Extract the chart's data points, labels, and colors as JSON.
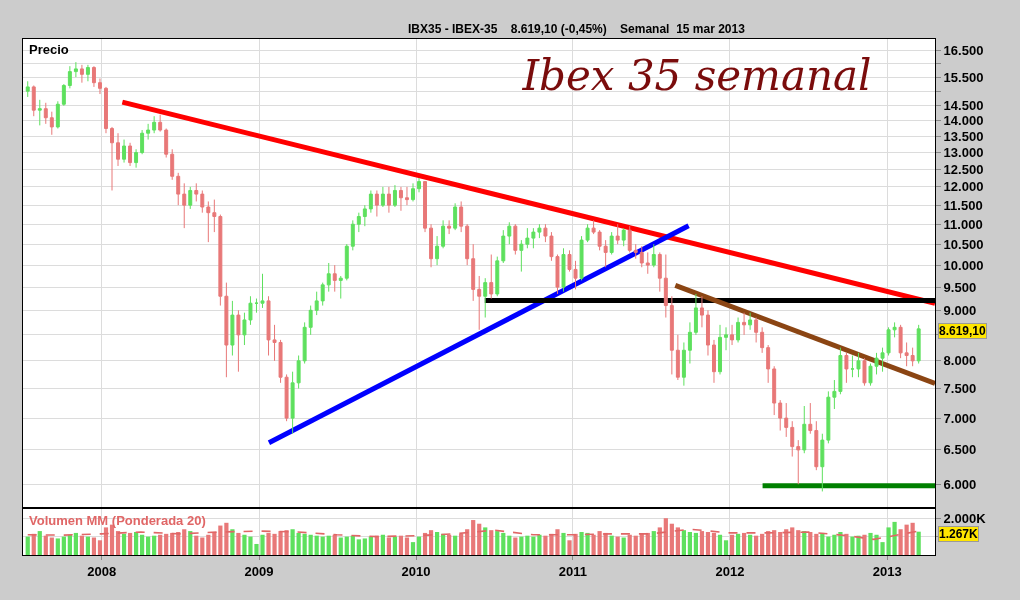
{
  "chart_data": [
    {
      "type": "candlestick",
      "title": "Ibex 35 semanal",
      "subtitle": "IBX35 - IBEX-35    8.619,10 (-0,45%)    Semanal  15 mar 2013",
      "ylabel": "Precio",
      "x": [
        "2007-07-13",
        "2007-07-27",
        "2007-08-10",
        "2007-08-24",
        "2007-09-07",
        "2007-09-21",
        "2007-10-05",
        "2007-10-19",
        "2007-11-02",
        "2007-11-16",
        "2007-11-30",
        "2007-12-14",
        "2007-12-28",
        "2008-01-11",
        "2008-01-25",
        "2008-02-08",
        "2008-02-22",
        "2008-03-07",
        "2008-03-21",
        "2008-04-04",
        "2008-04-18",
        "2008-05-02",
        "2008-05-16",
        "2008-05-30",
        "2008-06-13",
        "2008-06-27",
        "2008-07-11",
        "2008-07-25",
        "2008-08-08",
        "2008-08-22",
        "2008-09-05",
        "2008-09-19",
        "2008-10-03",
        "2008-10-17",
        "2008-10-31",
        "2008-11-14",
        "2008-11-28",
        "2008-12-12",
        "2008-12-26",
        "2009-01-09",
        "2009-01-23",
        "2009-02-06",
        "2009-02-20",
        "2009-03-06",
        "2009-03-20",
        "2009-04-03",
        "2009-04-17",
        "2009-05-01",
        "2009-05-15",
        "2009-05-29",
        "2009-06-12",
        "2009-06-26",
        "2009-07-10",
        "2009-07-24",
        "2009-08-07",
        "2009-08-21",
        "2009-09-04",
        "2009-09-18",
        "2009-10-02",
        "2009-10-16",
        "2009-10-30",
        "2009-11-13",
        "2009-11-27",
        "2009-12-11",
        "2009-12-25",
        "2010-01-08",
        "2010-01-22",
        "2010-02-05",
        "2010-02-19",
        "2010-03-05",
        "2010-03-19",
        "2010-04-02",
        "2010-04-16",
        "2010-04-30",
        "2010-05-14",
        "2010-05-28",
        "2010-06-11",
        "2010-06-25",
        "2010-07-09",
        "2010-07-23",
        "2010-08-06",
        "2010-08-20",
        "2010-09-03",
        "2010-09-17",
        "2010-10-01",
        "2010-10-15",
        "2010-10-29",
        "2010-11-12",
        "2010-11-26",
        "2010-12-10",
        "2010-12-24",
        "2011-01-07",
        "2011-01-21",
        "2011-02-04",
        "2011-02-18",
        "2011-03-04",
        "2011-03-18",
        "2011-04-01",
        "2011-04-15",
        "2011-04-29",
        "2011-05-13",
        "2011-05-27",
        "2011-06-10",
        "2011-06-24",
        "2011-07-08",
        "2011-07-22",
        "2011-08-05",
        "2011-08-19",
        "2011-09-02",
        "2011-09-16",
        "2011-09-30",
        "2011-10-14",
        "2011-10-28",
        "2011-11-11",
        "2011-11-25",
        "2011-12-09",
        "2011-12-23",
        "2012-01-06",
        "2012-01-20",
        "2012-02-03",
        "2012-02-17",
        "2012-03-02",
        "2012-03-16",
        "2012-03-30",
        "2012-04-13",
        "2012-04-27",
        "2012-05-11",
        "2012-05-25",
        "2012-06-08",
        "2012-06-22",
        "2012-07-06",
        "2012-07-20",
        "2012-08-03",
        "2012-08-17",
        "2012-08-31",
        "2012-09-14",
        "2012-09-28",
        "2012-10-12",
        "2012-10-26",
        "2012-11-09",
        "2012-11-23",
        "2012-12-07",
        "2012-12-21",
        "2013-01-04",
        "2013-01-18",
        "2013-02-01",
        "2013-02-15",
        "2013-03-01",
        "2013-03-15"
      ],
      "ohlc": [
        [
          15000,
          15350,
          14800,
          15150
        ],
        [
          15150,
          15200,
          14150,
          14350
        ],
        [
          14350,
          14700,
          13850,
          14400
        ],
        [
          14400,
          14600,
          13900,
          14100
        ],
        [
          14100,
          14300,
          13550,
          13800
        ],
        [
          13800,
          14650,
          13750,
          14550
        ],
        [
          14550,
          15250,
          14500,
          15200
        ],
        [
          15200,
          15900,
          15100,
          15700
        ],
        [
          15700,
          16050,
          15500,
          15800
        ],
        [
          15800,
          15950,
          15300,
          15600
        ],
        [
          15600,
          15950,
          15350,
          15850
        ],
        [
          15850,
          15900,
          15150,
          15300
        ],
        [
          15300,
          15450,
          14900,
          15100
        ],
        [
          15100,
          15150,
          13600,
          13750
        ],
        [
          13750,
          13800,
          11900,
          13300
        ],
        [
          13300,
          13600,
          12600,
          12800
        ],
        [
          12800,
          13400,
          12700,
          13200
        ],
        [
          13200,
          13300,
          12600,
          12700
        ],
        [
          12700,
          13100,
          12550,
          13000
        ],
        [
          13000,
          13700,
          12950,
          13600
        ],
        [
          13600,
          13900,
          13400,
          13700
        ],
        [
          13700,
          14150,
          13600,
          13950
        ],
        [
          13950,
          14200,
          13650,
          13700
        ],
        [
          13700,
          13750,
          12850,
          12950
        ],
        [
          12950,
          13100,
          12200,
          12300
        ],
        [
          12300,
          12400,
          11500,
          11800
        ],
        [
          11800,
          12100,
          10900,
          11500
        ],
        [
          11500,
          12000,
          11400,
          11900
        ],
        [
          11900,
          12100,
          11600,
          11800
        ],
        [
          11800,
          11900,
          11300,
          11450
        ],
        [
          11450,
          11600,
          10550,
          11300
        ],
        [
          11300,
          11650,
          10800,
          11200
        ],
        [
          11200,
          11250,
          9100,
          9300
        ],
        [
          9300,
          9600,
          7700,
          8300
        ],
        [
          8300,
          9200,
          8100,
          8900
        ],
        [
          8900,
          9000,
          7800,
          8500
        ],
        [
          8500,
          8950,
          8300,
          8800
        ],
        [
          8800,
          9300,
          8700,
          9150
        ],
        [
          9150,
          9250,
          8950,
          9150
        ],
        [
          9150,
          9800,
          9050,
          9200
        ],
        [
          9200,
          9300,
          8100,
          8400
        ],
        [
          8400,
          8700,
          8000,
          8350
        ],
        [
          8350,
          8400,
          7600,
          7700
        ],
        [
          7700,
          7750,
          6950,
          7000
        ],
        [
          7000,
          7800,
          6750,
          7600
        ],
        [
          7600,
          8100,
          7500,
          8000
        ],
        [
          8000,
          8750,
          7950,
          8650
        ],
        [
          8650,
          9100,
          8500,
          9000
        ],
        [
          9000,
          9400,
          8900,
          9200
        ],
        [
          9200,
          9600,
          9100,
          9550
        ],
        [
          9550,
          10050,
          9400,
          9800
        ],
        [
          9800,
          10000,
          9400,
          9650
        ],
        [
          9650,
          9750,
          9250,
          9700
        ],
        [
          9700,
          10500,
          9650,
          10450
        ],
        [
          10450,
          11100,
          10350,
          11000
        ],
        [
          11000,
          11300,
          10800,
          11200
        ],
        [
          11200,
          11500,
          10950,
          11400
        ],
        [
          11400,
          11900,
          11300,
          11800
        ],
        [
          11800,
          11900,
          11200,
          11500
        ],
        [
          11500,
          12000,
          11450,
          11800
        ],
        [
          11800,
          12000,
          11300,
          11500
        ],
        [
          11500,
          12050,
          11450,
          11900
        ],
        [
          11900,
          12000,
          11350,
          11700
        ],
        [
          11700,
          12000,
          11500,
          11650
        ],
        [
          11650,
          12100,
          11600,
          11950
        ],
        [
          11950,
          12250,
          11850,
          12150
        ],
        [
          12150,
          12150,
          10800,
          10900
        ],
        [
          10900,
          11000,
          9950,
          10150
        ],
        [
          10150,
          10700,
          10000,
          10450
        ],
        [
          10450,
          11100,
          10400,
          10950
        ],
        [
          10950,
          11100,
          10750,
          10900
        ],
        [
          10900,
          11550,
          10850,
          11450
        ],
        [
          11450,
          11600,
          10800,
          10950
        ],
        [
          10950,
          11000,
          10000,
          10150
        ],
        [
          10150,
          10500,
          9200,
          9450
        ],
        [
          9450,
          9750,
          8600,
          9300
        ],
        [
          9300,
          9700,
          8850,
          9600
        ],
        [
          9600,
          10250,
          9250,
          9350
        ],
        [
          9350,
          10200,
          9300,
          10100
        ],
        [
          10100,
          10850,
          10050,
          10700
        ],
        [
          10700,
          11050,
          10500,
          10950
        ],
        [
          10950,
          11000,
          10250,
          10350
        ],
        [
          10350,
          10600,
          9850,
          10500
        ],
        [
          10500,
          10900,
          10400,
          10650
        ],
        [
          10650,
          10900,
          10400,
          10800
        ],
        [
          10800,
          11000,
          10650,
          10900
        ],
        [
          10900,
          11000,
          10550,
          10700
        ],
        [
          10700,
          10800,
          10100,
          10200
        ],
        [
          10200,
          10250,
          9350,
          9500
        ],
        [
          9500,
          10400,
          9400,
          10250
        ],
        [
          10250,
          10350,
          9850,
          9900
        ],
        [
          9900,
          10100,
          9450,
          9700
        ],
        [
          9700,
          10700,
          9650,
          10600
        ],
        [
          10600,
          11000,
          10550,
          10900
        ],
        [
          10900,
          11100,
          10750,
          10800
        ],
        [
          10800,
          10850,
          10350,
          10450
        ],
        [
          10450,
          10600,
          9950,
          10300
        ],
        [
          10300,
          10800,
          10250,
          10700
        ],
        [
          10700,
          11000,
          10500,
          10600
        ],
        [
          10600,
          10900,
          10450,
          10850
        ],
        [
          10850,
          10950,
          10300,
          10350
        ],
        [
          10350,
          10500,
          10150,
          10300
        ],
        [
          10300,
          10450,
          9950,
          10050
        ],
        [
          10050,
          10300,
          9800,
          10000
        ],
        [
          10000,
          10500,
          9950,
          10250
        ],
        [
          10250,
          10300,
          9400,
          9700
        ],
        [
          9700,
          10250,
          8850,
          9100
        ],
        [
          9100,
          9300,
          7750,
          8200
        ],
        [
          8200,
          8500,
          7650,
          7700
        ],
        [
          7700,
          8350,
          7550,
          8200
        ],
        [
          8200,
          8750,
          7950,
          8550
        ],
        [
          8550,
          9350,
          8500,
          9050
        ],
        [
          9050,
          9300,
          8650,
          8900
        ],
        [
          8900,
          9000,
          8100,
          8300
        ],
        [
          8300,
          8400,
          7600,
          7800
        ],
        [
          7800,
          8700,
          7750,
          8450
        ],
        [
          8450,
          8650,
          8200,
          8500
        ],
        [
          8500,
          8700,
          8300,
          8400
        ],
        [
          8400,
          8850,
          8350,
          8750
        ],
        [
          8750,
          8950,
          8500,
          8700
        ],
        [
          8700,
          8950,
          8600,
          8800
        ],
        [
          8800,
          8850,
          8350,
          8550
        ],
        [
          8550,
          8650,
          8150,
          8250
        ],
        [
          8250,
          8300,
          7600,
          7850
        ],
        [
          7850,
          7900,
          7050,
          7250
        ],
        [
          7250,
          7300,
          6800,
          7000
        ],
        [
          7000,
          7250,
          6700,
          6850
        ],
        [
          6850,
          6950,
          6400,
          6550
        ],
        [
          6550,
          6650,
          6000,
          6500
        ],
        [
          6500,
          7200,
          6450,
          6900
        ],
        [
          6900,
          7250,
          6750,
          6800
        ],
        [
          6800,
          6950,
          6200,
          6250
        ],
        [
          6250,
          6750,
          5900,
          6650
        ],
        [
          6650,
          7450,
          6600,
          7350
        ],
        [
          7350,
          7650,
          7150,
          7450
        ],
        [
          7450,
          8250,
          7400,
          8100
        ],
        [
          8100,
          8150,
          7600,
          7850
        ],
        [
          7850,
          8100,
          7700,
          7850
        ],
        [
          7850,
          8150,
          7700,
          8000
        ],
        [
          8000,
          8050,
          7550,
          7600
        ],
        [
          7600,
          7950,
          7550,
          7900
        ],
        [
          7900,
          8150,
          7750,
          8050
        ],
        [
          8050,
          8250,
          7800,
          8150
        ],
        [
          8150,
          8650,
          8100,
          8600
        ],
        [
          8600,
          8750,
          8450,
          8650
        ],
        [
          8650,
          8700,
          8050,
          8150
        ],
        [
          8150,
          8350,
          7900,
          8100
        ],
        [
          8100,
          8250,
          7900,
          8000
        ],
        [
          8000,
          8700,
          7950,
          8619.1
        ]
      ],
      "colors": [
        "#5ee05e",
        "#e87878",
        "#5ee05e",
        "#e87878",
        "#e87878",
        "#5ee05e",
        "#5ee05e",
        "#5ee05e",
        "#5ee05e",
        "#e87878",
        "#5ee05e",
        "#e87878",
        "#e87878",
        "#e87878",
        "#e87878",
        "#e87878",
        "#5ee05e",
        "#e87878",
        "#5ee05e",
        "#5ee05e",
        "#5ee05e",
        "#5ee05e",
        "#e87878",
        "#e87878",
        "#e87878",
        "#e87878",
        "#e87878",
        "#5ee05e",
        "#e87878",
        "#e87878",
        "#e87878",
        "#e87878",
        "#e87878",
        "#e87878",
        "#5ee05e",
        "#e87878",
        "#5ee05e",
        "#5ee05e",
        "#5ee05e",
        "#5ee05e",
        "#e87878",
        "#e87878",
        "#e87878",
        "#e87878",
        "#5ee05e",
        "#5ee05e",
        "#5ee05e",
        "#5ee05e",
        "#5ee05e",
        "#5ee05e",
        "#5ee05e",
        "#e87878",
        "#5ee05e",
        "#5ee05e",
        "#5ee05e",
        "#5ee05e",
        "#5ee05e",
        "#5ee05e",
        "#e87878",
        "#5ee05e",
        "#e87878",
        "#5ee05e",
        "#e87878",
        "#e87878",
        "#5ee05e",
        "#5ee05e",
        "#e87878",
        "#e87878",
        "#5ee05e",
        "#5ee05e",
        "#e87878",
        "#5ee05e",
        "#e87878",
        "#e87878",
        "#e87878",
        "#e87878",
        "#5ee05e",
        "#e87878",
        "#5ee05e",
        "#5ee05e",
        "#5ee05e",
        "#e87878",
        "#5ee05e",
        "#5ee05e",
        "#5ee05e",
        "#5ee05e",
        "#e87878",
        "#e87878",
        "#e87878",
        "#5ee05e",
        "#e87878",
        "#e87878",
        "#5ee05e",
        "#5ee05e",
        "#e87878",
        "#e87878",
        "#e87878",
        "#5ee05e",
        "#e87878",
        "#5ee05e",
        "#e87878",
        "#e87878",
        "#e87878",
        "#e87878",
        "#5ee05e",
        "#e87878",
        "#e87878",
        "#e87878",
        "#e87878",
        "#5ee05e",
        "#5ee05e",
        "#5ee05e",
        "#e87878",
        "#e87878",
        "#e87878",
        "#5ee05e",
        "#5ee05e",
        "#e87878",
        "#5ee05e",
        "#e87878",
        "#5ee05e",
        "#e87878",
        "#e87878",
        "#e87878",
        "#e87878",
        "#e87878",
        "#e87878",
        "#e87878",
        "#e87878",
        "#5ee05e",
        "#e87878",
        "#e87878",
        "#5ee05e",
        "#5ee05e",
        "#5ee05e",
        "#5ee05e",
        "#e87878",
        "#5ee05e",
        "#5ee05e",
        "#e87878",
        "#5ee05e",
        "#5ee05e",
        "#5ee05e",
        "#5ee05e",
        "#5ee05e",
        "#e87878",
        "#e87878",
        "#e87878",
        "#5ee05e"
      ],
      "series": [
        {
          "type": "line",
          "color": "#ff0000",
          "x": [
            "2008-02-18",
            "2013-04-22"
          ],
          "values": [
            14620,
            9150
          ]
        },
        {
          "type": "line",
          "color": "#0000ff",
          "x": [
            "2009-01-24",
            "2011-09-27"
          ],
          "values": [
            6610,
            10960
          ]
        },
        {
          "type": "line",
          "color": "#000000",
          "x": [
            "2010-06-10",
            "2013-04-22"
          ],
          "values": [
            9210,
            9210
          ]
        },
        {
          "type": "line",
          "color": "#8b4513",
          "x": [
            "2011-08-27",
            "2013-04-22"
          ],
          "values": [
            9540,
            7590
          ]
        },
        {
          "type": "line",
          "color": "#008000",
          "x": [
            "2012-03-17",
            "2013-04-22"
          ],
          "values": [
            5980,
            5980
          ]
        }
      ],
      "xlim": [
        "2007-07-02",
        "2013-04-22"
      ],
      "xticks": [
        {
          "value": "2008-01-01",
          "label": null
        },
        {
          "value": "2009-01-01",
          "label": null
        },
        {
          "value": "2010-01-01",
          "label": null
        },
        {
          "value": "2011-01-01",
          "label": null
        },
        {
          "value": "2012-01-01",
          "label": null
        },
        {
          "value": "2013-01-01",
          "label": null
        }
      ],
      "ylim": [
        5690,
        16940
      ],
      "log": "y",
      "yticks": [
        {
          "value": 6000,
          "label": "6.000"
        },
        {
          "value": 6500,
          "label": "6.500"
        },
        {
          "value": 7000,
          "label": "7.000"
        },
        {
          "value": 7500,
          "label": "7.500"
        },
        {
          "value": 8000,
          "label": "8.000"
        },
        {
          "value": 8500,
          "label": null
        },
        {
          "value": 9000,
          "label": "9.000"
        },
        {
          "value": 9500,
          "label": "9.500"
        },
        {
          "value": 10000,
          "label": "10.000"
        },
        {
          "value": 10500,
          "label": "10.500"
        },
        {
          "value": 11000,
          "label": "11.000"
        },
        {
          "value": 11500,
          "label": "11.500"
        },
        {
          "value": 12000,
          "label": "12.000"
        },
        {
          "value": 12500,
          "label": "12.500"
        },
        {
          "value": 13000,
          "label": "13.000"
        },
        {
          "value": 13500,
          "label": "13.500"
        },
        {
          "value": 14000,
          "label": "14.000"
        },
        {
          "value": 14500,
          "label": "14.500"
        },
        {
          "value": 15000,
          "label": null
        },
        {
          "value": 15500,
          "label": "15.500"
        },
        {
          "value": 16000,
          "label": null
        },
        {
          "value": 16500,
          "label": "16.500"
        }
      ],
      "annotations": [
        "8.619,10"
      ],
      "grid": true,
      "tick_labels": "y"
    },
    {
      "type": "bar",
      "title": "Volumen MM (Ponderada 20)",
      "x": [
        "2007-07-13",
        "2007-07-27",
        "2007-08-10",
        "2007-08-24",
        "2007-09-07",
        "2007-09-21",
        "2007-10-05",
        "2007-10-19",
        "2007-11-02",
        "2007-11-16",
        "2007-11-30",
        "2007-12-14",
        "2007-12-28",
        "2008-01-11",
        "2008-01-25",
        "2008-02-08",
        "2008-02-22",
        "2008-03-07",
        "2008-03-21",
        "2008-04-04",
        "2008-04-18",
        "2008-05-02",
        "2008-05-16",
        "2008-05-30",
        "2008-06-13",
        "2008-06-27",
        "2008-07-11",
        "2008-07-25",
        "2008-08-08",
        "2008-08-22",
        "2008-09-05",
        "2008-09-19",
        "2008-10-03",
        "2008-10-17",
        "2008-10-31",
        "2008-11-14",
        "2008-11-28",
        "2008-12-12",
        "2008-12-26",
        "2009-01-09",
        "2009-01-23",
        "2009-02-06",
        "2009-02-20",
        "2009-03-06",
        "2009-03-20",
        "2009-04-03",
        "2009-04-17",
        "2009-05-01",
        "2009-05-15",
        "2009-05-29",
        "2009-06-12",
        "2009-06-26",
        "2009-07-10",
        "2009-07-24",
        "2009-08-07",
        "2009-08-21",
        "2009-09-04",
        "2009-09-18",
        "2009-10-02",
        "2009-10-16",
        "2009-10-30",
        "2009-11-13",
        "2009-11-27",
        "2009-12-11",
        "2009-12-25",
        "2010-01-08",
        "2010-01-22",
        "2010-02-05",
        "2010-02-19",
        "2010-03-05",
        "2010-03-19",
        "2010-04-02",
        "2010-04-16",
        "2010-04-30",
        "2010-05-14",
        "2010-05-28",
        "2010-06-11",
        "2010-06-25",
        "2010-07-09",
        "2010-07-23",
        "2010-08-06",
        "2010-08-20",
        "2010-09-03",
        "2010-09-17",
        "2010-10-01",
        "2010-10-15",
        "2010-10-29",
        "2010-11-12",
        "2010-11-26",
        "2010-12-10",
        "2010-12-24",
        "2011-01-07",
        "2011-01-21",
        "2011-02-04",
        "2011-02-18",
        "2011-03-04",
        "2011-03-18",
        "2011-04-01",
        "2011-04-15",
        "2011-04-29",
        "2011-05-13",
        "2011-05-27",
        "2011-06-10",
        "2011-06-24",
        "2011-07-08",
        "2011-07-22",
        "2011-08-05",
        "2011-08-19",
        "2011-09-02",
        "2011-09-16",
        "2011-09-30",
        "2011-10-14",
        "2011-10-28",
        "2011-11-11",
        "2011-11-25",
        "2011-12-09",
        "2011-12-23",
        "2012-01-06",
        "2012-01-20",
        "2012-02-03",
        "2012-02-17",
        "2012-03-02",
        "2012-03-16",
        "2012-03-30",
        "2012-04-13",
        "2012-04-27",
        "2012-05-11",
        "2012-05-25",
        "2012-06-08",
        "2012-06-22",
        "2012-07-06",
        "2012-07-20",
        "2012-08-03",
        "2012-08-17",
        "2012-08-31",
        "2012-09-14",
        "2012-09-28",
        "2012-10-12",
        "2012-10-26",
        "2012-11-09",
        "2012-11-23",
        "2012-12-07",
        "2012-12-21",
        "2013-01-04",
        "2013-01-18",
        "2013-02-01",
        "2013-02-15",
        "2013-03-01",
        "2013-03-15"
      ],
      "series": [
        {
          "values": [
            1000,
            1150,
            1300,
            1050,
            950,
            900,
            1000,
            1100,
            1200,
            1050,
            1000,
            950,
            800,
            1500,
            1650,
            1300,
            1150,
            1200,
            1250,
            1100,
            1000,
            1050,
            1100,
            1150,
            1200,
            1250,
            1400,
            1300,
            1050,
            950,
            1100,
            1250,
            1600,
            1750,
            1400,
            1200,
            1100,
            1000,
            600,
            1100,
            1200,
            1150,
            1300,
            1350,
            1400,
            1200,
            1150,
            1100,
            1050,
            1000,
            1050,
            1100,
            950,
            1000,
            1050,
            850,
            900,
            1000,
            1050,
            1100,
            950,
            1000,
            1050,
            950,
            700,
            1000,
            1200,
            1350,
            1250,
            1150,
            1100,
            1050,
            1150,
            1400,
            1900,
            1700,
            1500,
            1350,
            1300,
            1200,
            1050,
            950,
            1000,
            1050,
            1000,
            1100,
            1050,
            1150,
            1400,
            1200,
            800,
            1150,
            1250,
            1200,
            1100,
            1300,
            1200,
            1050,
            1000,
            950,
            1100,
            1050,
            1150,
            1200,
            1300,
            1500,
            2000,
            1700,
            1500,
            1350,
            1250,
            1200,
            1300,
            1250,
            1200,
            1100,
            800,
            1100,
            1150,
            1200,
            1100,
            1050,
            1150,
            1300,
            1350,
            1250,
            1400,
            1500,
            1350,
            1300,
            1250,
            1150,
            1200,
            1000,
            1100,
            1250,
            1150,
            1000,
            1050,
            1100,
            1200,
            1100,
            700,
            1500,
            1800,
            1400,
            1650,
            1750,
            1267
          ],
          "colors": [
            "#5ee05e",
            "#e87878",
            "#5ee05e",
            "#e87878",
            "#e87878",
            "#5ee05e",
            "#5ee05e",
            "#5ee05e",
            "#5ee05e",
            "#e87878",
            "#5ee05e",
            "#e87878",
            "#e87878",
            "#e87878",
            "#e87878",
            "#e87878",
            "#5ee05e",
            "#e87878",
            "#5ee05e",
            "#5ee05e",
            "#5ee05e",
            "#5ee05e",
            "#e87878",
            "#e87878",
            "#e87878",
            "#e87878",
            "#e87878",
            "#5ee05e",
            "#e87878",
            "#e87878",
            "#e87878",
            "#e87878",
            "#e87878",
            "#e87878",
            "#5ee05e",
            "#e87878",
            "#5ee05e",
            "#5ee05e",
            "#5ee05e",
            "#5ee05e",
            "#e87878",
            "#e87878",
            "#e87878",
            "#e87878",
            "#5ee05e",
            "#5ee05e",
            "#5ee05e",
            "#5ee05e",
            "#5ee05e",
            "#5ee05e",
            "#5ee05e",
            "#e87878",
            "#5ee05e",
            "#5ee05e",
            "#5ee05e",
            "#5ee05e",
            "#5ee05e",
            "#5ee05e",
            "#e87878",
            "#5ee05e",
            "#e87878",
            "#5ee05e",
            "#e87878",
            "#e87878",
            "#5ee05e",
            "#5ee05e",
            "#e87878",
            "#e87878",
            "#5ee05e",
            "#5ee05e",
            "#e87878",
            "#5ee05e",
            "#e87878",
            "#e87878",
            "#e87878",
            "#e87878",
            "#5ee05e",
            "#e87878",
            "#5ee05e",
            "#5ee05e",
            "#5ee05e",
            "#e87878",
            "#5ee05e",
            "#5ee05e",
            "#5ee05e",
            "#5ee05e",
            "#e87878",
            "#e87878",
            "#e87878",
            "#5ee05e",
            "#e87878",
            "#e87878",
            "#5ee05e",
            "#5ee05e",
            "#e87878",
            "#e87878",
            "#e87878",
            "#5ee05e",
            "#e87878",
            "#5ee05e",
            "#e87878",
            "#e87878",
            "#e87878",
            "#e87878",
            "#5ee05e",
            "#e87878",
            "#e87878",
            "#e87878",
            "#e87878",
            "#5ee05e",
            "#5ee05e",
            "#5ee05e",
            "#e87878",
            "#e87878",
            "#e87878",
            "#5ee05e",
            "#5ee05e",
            "#e87878",
            "#5ee05e",
            "#e87878",
            "#5ee05e",
            "#e87878",
            "#e87878",
            "#e87878",
            "#e87878",
            "#e87878",
            "#e87878",
            "#e87878",
            "#e87878",
            "#5ee05e",
            "#e87878",
            "#e87878",
            "#5ee05e",
            "#5ee05e",
            "#5ee05e",
            "#5ee05e",
            "#e87878",
            "#5ee05e",
            "#5ee05e",
            "#e87878",
            "#5ee05e",
            "#5ee05e",
            "#5ee05e",
            "#5ee05e",
            "#5ee05e",
            "#e87878",
            "#e87878",
            "#e87878",
            "#5ee05e"
          ]
        },
        {
          "type": "line",
          "color": "#e06666",
          "line_style": "dashed",
          "x": [
            "2007-07-13",
            "2007-10-01",
            "2008-01-01",
            "2008-04-01",
            "2008-07-01",
            "2008-10-01",
            "2009-01-01",
            "2009-04-01",
            "2009-07-01",
            "2009-10-01",
            "2010-01-01",
            "2010-04-01",
            "2010-07-01",
            "2010-10-01",
            "2011-01-01",
            "2011-04-01",
            "2011-07-01",
            "2011-10-01",
            "2012-01-01",
            "2012-04-01",
            "2012-07-01",
            "2012-10-01",
            "2012-12-01",
            "2013-03-15"
          ],
          "values": [
            1100,
            1080,
            1150,
            1250,
            1150,
            1250,
            1300,
            1250,
            1100,
            1000,
            1050,
            1150,
            1350,
            1100,
            1100,
            1150,
            1150,
            1400,
            1200,
            1200,
            1250,
            1050,
            850,
            1300
          ]
        }
      ],
      "xlim": [
        "2007-07-02",
        "2013-04-22"
      ],
      "xticks": [
        {
          "value": "2008-01-01",
          "label": "2008"
        },
        {
          "value": "2009-01-01",
          "label": "2009"
        },
        {
          "value": "2010-01-01",
          "label": "2010"
        },
        {
          "value": "2011-01-01",
          "label": "2011"
        },
        {
          "value": "2012-01-01",
          "label": "2012"
        },
        {
          "value": "2013-01-01",
          "label": "2013"
        }
      ],
      "ylim": [
        0,
        2500
      ],
      "yticks": [
        {
          "value": 1000,
          "label": null
        },
        {
          "value": 2000,
          "label": "2.000K"
        }
      ],
      "annotations": [
        "1.267K"
      ],
      "grid": true
    }
  ]
}
